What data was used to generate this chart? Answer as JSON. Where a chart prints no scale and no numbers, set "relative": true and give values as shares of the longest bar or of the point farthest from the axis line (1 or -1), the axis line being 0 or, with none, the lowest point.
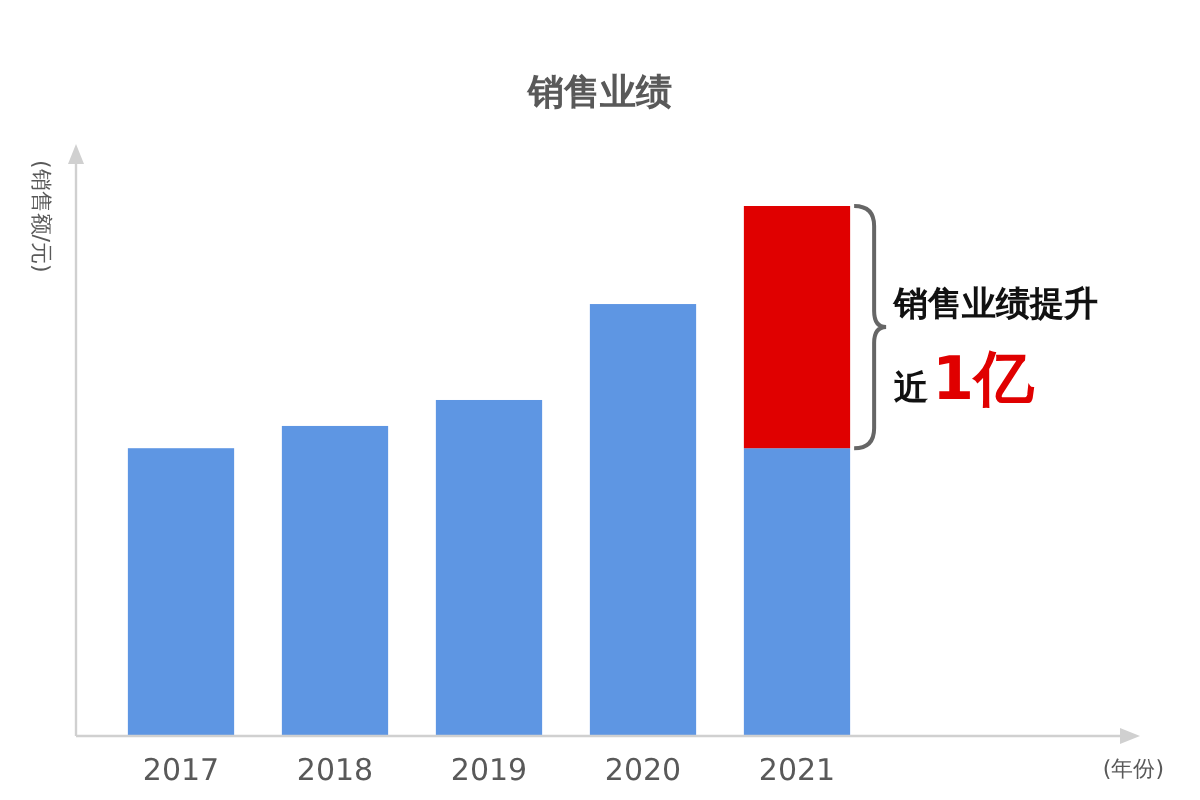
{
  "chart_data": {
    "type": "bar",
    "title": "销售业绩",
    "ylabel": "(销售额/元)",
    "relative": true,
    "stacked": true,
    "categories": [
      "2017",
      "2018",
      "2019",
      "2020",
      "2021"
    ],
    "series": [
      {
        "color": "#5e96e3",
        "values": [
          0.543,
          0.585,
          0.634,
          0.815,
          0.543
        ]
      },
      {
        "color": "#e00000",
        "values": [
          null,
          null,
          null,
          null,
          0.457
        ]
      }
    ],
    "annotations": [
      "销售业绩提升",
      "近",
      "1亿",
      "(年份)"
    ]
  }
}
